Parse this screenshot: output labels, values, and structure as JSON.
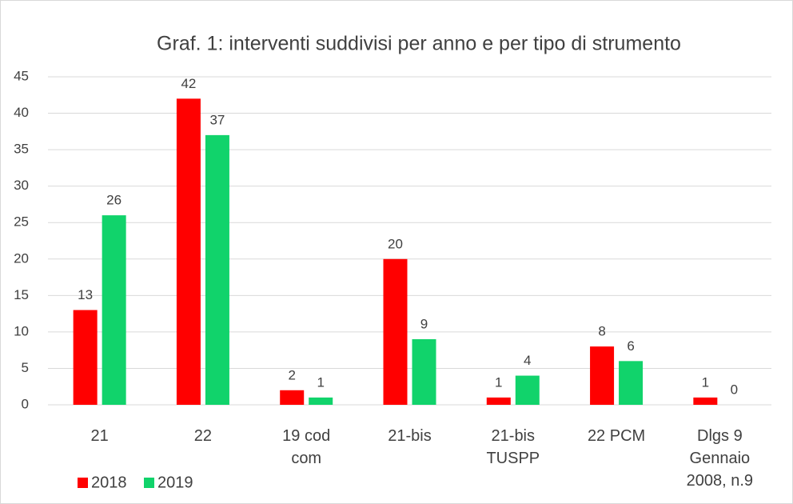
{
  "chart_data": {
    "type": "bar",
    "title": "Graf. 1: interventi suddivisi per anno e per tipo di strumento",
    "categories": [
      "21",
      "22",
      "19 cod com",
      "21-bis",
      "21-bis TUSPP",
      "22 PCM",
      "Dlgs 9 Gennaio 2008, n.9"
    ],
    "series": [
      {
        "name": "2018",
        "color": "#ff0000",
        "values": [
          13,
          42,
          2,
          20,
          1,
          8,
          1
        ]
      },
      {
        "name": "2019",
        "color": "#11d36b",
        "values": [
          26,
          37,
          1,
          9,
          4,
          6,
          0
        ]
      }
    ],
    "ylim": [
      0,
      45
    ],
    "yticks": [
      0,
      5,
      10,
      15,
      20,
      25,
      30,
      35,
      40,
      45
    ],
    "grid": true,
    "legend": "bottom-left"
  }
}
